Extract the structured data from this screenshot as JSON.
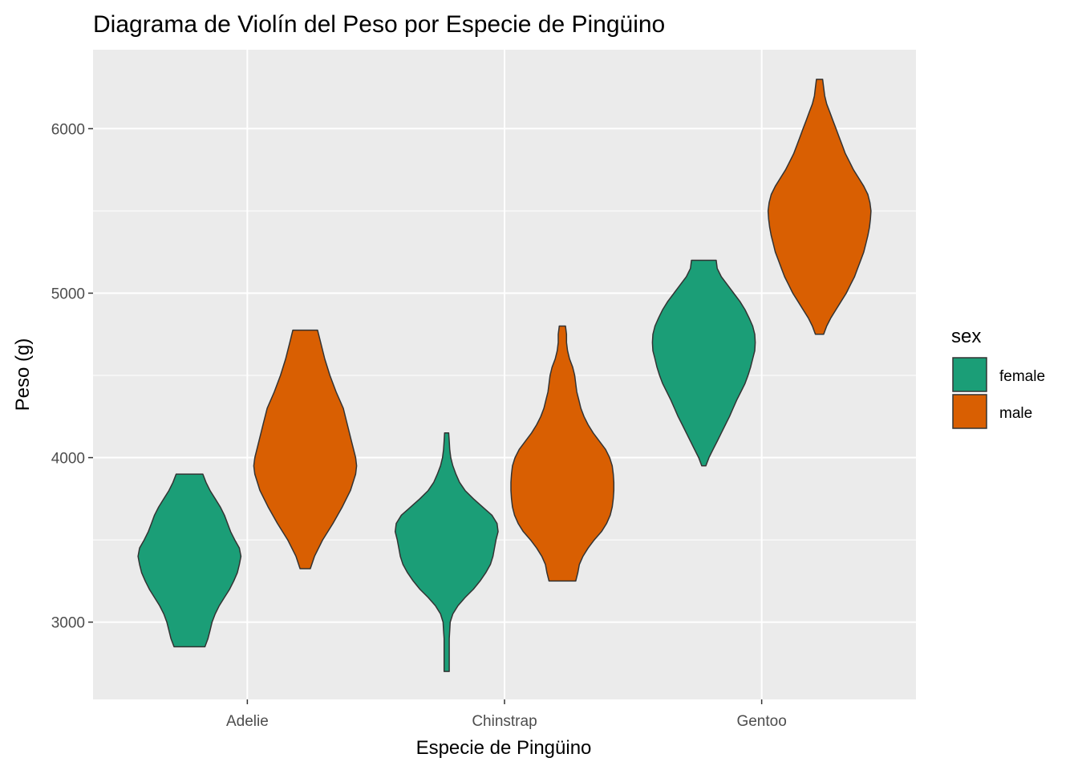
{
  "chart_data": {
    "type": "violin",
    "title": "Diagrama de Violín del Peso por Especie de Pingüino",
    "xlabel": "Especie de Pingüino",
    "ylabel": "Peso (g)",
    "categories": [
      "Adelie",
      "Chinstrap",
      "Gentoo"
    ],
    "ylim": [
      2530,
      6480
    ],
    "y_ticks": [
      3000,
      4000,
      5000,
      6000
    ],
    "y_tick_labels": [
      "3000",
      "4000",
      "5000",
      "6000"
    ],
    "grid": true,
    "legend": {
      "title": "sex",
      "placement": "right",
      "entries": [
        {
          "label": "female",
          "color": "#1b9e77"
        },
        {
          "label": "male",
          "color": "#d95f02"
        }
      ]
    },
    "colors": {
      "panel_background": "#ebebeb",
      "grid_major": "#ffffff",
      "outline": "#333333"
    },
    "series": [
      {
        "name": "female",
        "color": "#1b9e77",
        "violins": [
          {
            "category": "Adelie",
            "min": 2850,
            "max": 3900,
            "density": [
              [
                2850,
                0.3
              ],
              [
                2900,
                0.36
              ],
              [
                2950,
                0.4
              ],
              [
                3000,
                0.44
              ],
              [
                3050,
                0.5
              ],
              [
                3100,
                0.58
              ],
              [
                3150,
                0.68
              ],
              [
                3200,
                0.78
              ],
              [
                3250,
                0.86
              ],
              [
                3300,
                0.93
              ],
              [
                3350,
                0.97
              ],
              [
                3400,
                1.0
              ],
              [
                3450,
                0.97
              ],
              [
                3500,
                0.88
              ],
              [
                3550,
                0.8
              ],
              [
                3600,
                0.74
              ],
              [
                3650,
                0.68
              ],
              [
                3700,
                0.6
              ],
              [
                3750,
                0.5
              ],
              [
                3800,
                0.4
              ],
              [
                3850,
                0.32
              ],
              [
                3900,
                0.26
              ]
            ]
          },
          {
            "category": "Chinstrap",
            "min": 2700,
            "max": 4150,
            "density": [
              [
                2700,
                0.05
              ],
              [
                2750,
                0.05
              ],
              [
                2800,
                0.05
              ],
              [
                2850,
                0.05
              ],
              [
                2900,
                0.05
              ],
              [
                2950,
                0.06
              ],
              [
                3000,
                0.07
              ],
              [
                3050,
                0.12
              ],
              [
                3100,
                0.22
              ],
              [
                3150,
                0.36
              ],
              [
                3200,
                0.52
              ],
              [
                3250,
                0.65
              ],
              [
                3300,
                0.76
              ],
              [
                3350,
                0.85
              ],
              [
                3400,
                0.9
              ],
              [
                3450,
                0.93
              ],
              [
                3500,
                0.96
              ],
              [
                3550,
                1.0
              ],
              [
                3600,
                0.98
              ],
              [
                3650,
                0.88
              ],
              [
                3700,
                0.7
              ],
              [
                3750,
                0.52
              ],
              [
                3800,
                0.36
              ],
              [
                3850,
                0.25
              ],
              [
                3900,
                0.18
              ],
              [
                3950,
                0.12
              ],
              [
                4000,
                0.08
              ],
              [
                4050,
                0.06
              ],
              [
                4100,
                0.05
              ],
              [
                4150,
                0.04
              ]
            ]
          },
          {
            "category": "Gentoo",
            "min": 3950,
            "max": 5200,
            "density": [
              [
                3950,
                0.04
              ],
              [
                4000,
                0.1
              ],
              [
                4050,
                0.18
              ],
              [
                4100,
                0.26
              ],
              [
                4150,
                0.34
              ],
              [
                4200,
                0.42
              ],
              [
                4250,
                0.5
              ],
              [
                4300,
                0.57
              ],
              [
                4350,
                0.64
              ],
              [
                4400,
                0.72
              ],
              [
                4450,
                0.8
              ],
              [
                4500,
                0.86
              ],
              [
                4550,
                0.91
              ],
              [
                4600,
                0.95
              ],
              [
                4650,
                0.99
              ],
              [
                4700,
                1.0
              ],
              [
                4750,
                0.99
              ],
              [
                4800,
                0.95
              ],
              [
                4850,
                0.88
              ],
              [
                4900,
                0.8
              ],
              [
                4950,
                0.7
              ],
              [
                5000,
                0.58
              ],
              [
                5050,
                0.46
              ],
              [
                5100,
                0.34
              ],
              [
                5150,
                0.26
              ],
              [
                5200,
                0.24
              ]
            ]
          }
        ]
      },
      {
        "name": "male",
        "color": "#d95f02",
        "violins": [
          {
            "category": "Adelie",
            "min": 3325,
            "max": 4775,
            "density": [
              [
                3325,
                0.1
              ],
              [
                3400,
                0.18
              ],
              [
                3500,
                0.34
              ],
              [
                3600,
                0.54
              ],
              [
                3700,
                0.72
              ],
              [
                3800,
                0.88
              ],
              [
                3900,
                0.98
              ],
              [
                3950,
                1.0
              ],
              [
                4000,
                0.98
              ],
              [
                4100,
                0.9
              ],
              [
                4200,
                0.82
              ],
              [
                4300,
                0.74
              ],
              [
                4400,
                0.6
              ],
              [
                4500,
                0.48
              ],
              [
                4600,
                0.38
              ],
              [
                4700,
                0.3
              ],
              [
                4775,
                0.24
              ]
            ]
          },
          {
            "category": "Chinstrap",
            "min": 3250,
            "max": 4800,
            "density": [
              [
                3250,
                0.26
              ],
              [
                3300,
                0.3
              ],
              [
                3350,
                0.33
              ],
              [
                3400,
                0.4
              ],
              [
                3450,
                0.5
              ],
              [
                3500,
                0.62
              ],
              [
                3550,
                0.76
              ],
              [
                3600,
                0.86
              ],
              [
                3650,
                0.93
              ],
              [
                3700,
                0.97
              ],
              [
                3750,
                0.99
              ],
              [
                3800,
                1.0
              ],
              [
                3850,
                1.0
              ],
              [
                3900,
                0.99
              ],
              [
                3950,
                0.97
              ],
              [
                4000,
                0.92
              ],
              [
                4050,
                0.84
              ],
              [
                4100,
                0.72
              ],
              [
                4150,
                0.6
              ],
              [
                4200,
                0.5
              ],
              [
                4250,
                0.42
              ],
              [
                4300,
                0.36
              ],
              [
                4350,
                0.32
              ],
              [
                4400,
                0.28
              ],
              [
                4450,
                0.26
              ],
              [
                4500,
                0.24
              ],
              [
                4550,
                0.2
              ],
              [
                4600,
                0.14
              ],
              [
                4650,
                0.1
              ],
              [
                4700,
                0.08
              ],
              [
                4750,
                0.08
              ],
              [
                4800,
                0.06
              ]
            ]
          },
          {
            "category": "Gentoo",
            "min": 4750,
            "max": 6300,
            "density": [
              [
                4750,
                0.08
              ],
              [
                4800,
                0.14
              ],
              [
                4850,
                0.22
              ],
              [
                4900,
                0.32
              ],
              [
                4950,
                0.42
              ],
              [
                5000,
                0.52
              ],
              [
                5050,
                0.6
              ],
              [
                5100,
                0.68
              ],
              [
                5150,
                0.74
              ],
              [
                5200,
                0.8
              ],
              [
                5250,
                0.86
              ],
              [
                5300,
                0.9
              ],
              [
                5350,
                0.94
              ],
              [
                5400,
                0.97
              ],
              [
                5450,
                0.99
              ],
              [
                5500,
                1.0
              ],
              [
                5550,
                0.98
              ],
              [
                5600,
                0.94
              ],
              [
                5650,
                0.86
              ],
              [
                5700,
                0.76
              ],
              [
                5750,
                0.66
              ],
              [
                5800,
                0.58
              ],
              [
                5850,
                0.5
              ],
              [
                5900,
                0.44
              ],
              [
                5950,
                0.38
              ],
              [
                6000,
                0.32
              ],
              [
                6050,
                0.26
              ],
              [
                6100,
                0.2
              ],
              [
                6150,
                0.14
              ],
              [
                6200,
                0.1
              ],
              [
                6250,
                0.08
              ],
              [
                6300,
                0.06
              ]
            ]
          }
        ]
      }
    ]
  }
}
